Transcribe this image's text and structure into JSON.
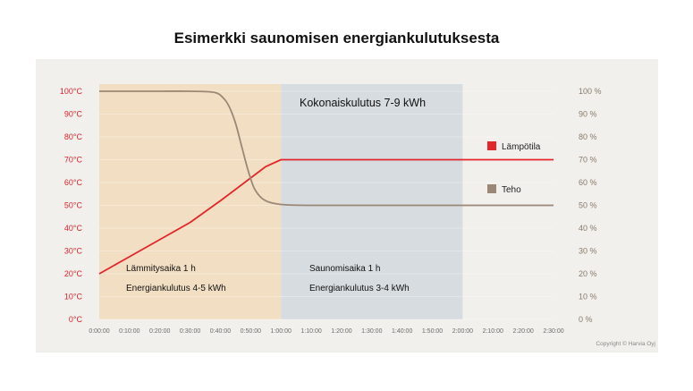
{
  "title": "Esimerkki saunomisen energiankulutuksesta",
  "copyright": "Copyright © Harvia Oyj",
  "colors": {
    "heating_bg": "#f2dfc3",
    "sauna_bg": "#d7dce0",
    "temperature": "#e2262b",
    "power": "#9b8776",
    "left_axis": "#d8262e",
    "right_axis": "#8a7a6b"
  },
  "chart_data": {
    "type": "line",
    "title": "Esimerkki saunomisen energiankulutuksesta",
    "x_unit": "minutes",
    "xlim": [
      0,
      150
    ],
    "x_ticks": [
      0,
      10,
      20,
      30,
      40,
      50,
      60,
      70,
      80,
      90,
      100,
      110,
      120,
      130,
      140,
      150
    ],
    "x_tick_labels": [
      "0:00:00",
      "0:10:00",
      "0:20:00",
      "0:30:00",
      "0:40:00",
      "0:50:00",
      "1:00:00",
      "1:10:00",
      "1:20:00",
      "1:30:00",
      "1:40:00",
      "1:50:00",
      "2:00:00",
      "2:10:00",
      "2:20:00",
      "2:30:00"
    ],
    "y_left": {
      "lim": [
        0,
        100
      ],
      "ticks": [
        0,
        10,
        20,
        30,
        40,
        50,
        60,
        70,
        80,
        90,
        100
      ],
      "tick_labels": [
        "0°C",
        "10°C",
        "20°C",
        "30°C",
        "40°C",
        "50°C",
        "60°C",
        "70°C",
        "80°C",
        "90°C",
        "100°C"
      ]
    },
    "y_right": {
      "lim": [
        0,
        100
      ],
      "ticks": [
        0,
        10,
        20,
        30,
        40,
        50,
        60,
        70,
        80,
        90,
        100
      ],
      "tick_labels": [
        "0 %",
        "10 %",
        "20 %",
        "30 %",
        "40 %",
        "50 %",
        "60 %",
        "70 %",
        "80 %",
        "90 %",
        "100 %"
      ]
    },
    "grid": true,
    "legend_position": "right",
    "series": [
      {
        "name": "Lämpötila",
        "axis": "left",
        "color": "#e2262b",
        "x": [
          0,
          10,
          20,
          30,
          40,
          50,
          55,
          60,
          70,
          80,
          90,
          100,
          110,
          120,
          130,
          140,
          150
        ],
        "y": [
          20,
          27.5,
          35,
          42.5,
          52,
          62,
          67,
          70,
          70,
          70,
          70,
          70,
          70,
          70,
          70,
          70,
          70
        ]
      },
      {
        "name": "Teho",
        "axis": "right",
        "color": "#9b8776",
        "x": [
          0,
          10,
          20,
          30,
          38,
          41,
          43,
          45,
          47,
          49,
          51,
          53,
          55,
          58,
          62,
          70,
          80,
          90,
          100,
          110,
          120,
          130,
          140,
          150
        ],
        "y": [
          100,
          100,
          100,
          100,
          99.5,
          97,
          93,
          86,
          76,
          66,
          58,
          54,
          52,
          50.8,
          50.2,
          50,
          50,
          50,
          50,
          50,
          50,
          50,
          50,
          50
        ]
      }
    ],
    "regions": [
      {
        "name": "heating",
        "x_start": 0,
        "x_end": 60,
        "label": "Lämmitysaika 1 h",
        "energy": "Energiankulutus 4-5 kWh"
      },
      {
        "name": "sauna",
        "x_start": 60,
        "x_end": 120,
        "label": "Saunomisaika 1 h",
        "energy": "Energiankulutus 3-4 kWh"
      }
    ],
    "total_label": "Kokonaiskulutus 7-9 kWh"
  }
}
